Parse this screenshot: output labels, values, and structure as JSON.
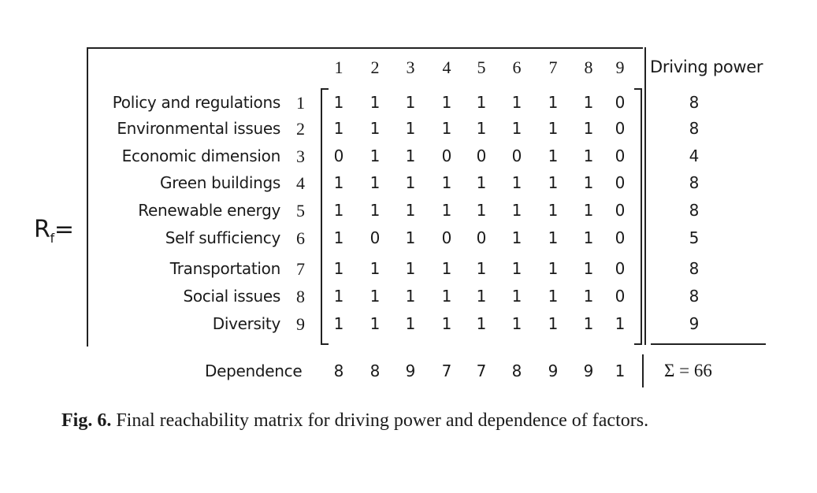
{
  "matrix_symbol": "R",
  "matrix_subscript": "f",
  "equals": "=",
  "column_headers": [
    "1",
    "2",
    "3",
    "4",
    "5",
    "6",
    "7",
    "8",
    "9"
  ],
  "driving_power_header": "Driving power",
  "rows": [
    {
      "label": "Policy and regulations",
      "index": "1",
      "values": [
        1,
        1,
        1,
        1,
        1,
        1,
        1,
        1,
        0
      ],
      "driving_power": "8"
    },
    {
      "label": "Environmental issues",
      "index": "2",
      "values": [
        1,
        1,
        1,
        1,
        1,
        1,
        1,
        1,
        0
      ],
      "driving_power": "8"
    },
    {
      "label": "Economic dimension",
      "index": "3",
      "values": [
        0,
        1,
        1,
        0,
        0,
        0,
        1,
        1,
        0
      ],
      "driving_power": "4"
    },
    {
      "label": "Green buildings",
      "index": "4",
      "values": [
        1,
        1,
        1,
        1,
        1,
        1,
        1,
        1,
        0
      ],
      "driving_power": "8"
    },
    {
      "label": "Renewable energy",
      "index": "5",
      "values": [
        1,
        1,
        1,
        1,
        1,
        1,
        1,
        1,
        0
      ],
      "driving_power": "8"
    },
    {
      "label": "Self sufficiency",
      "index": "6",
      "values": [
        1,
        0,
        1,
        0,
        0,
        1,
        1,
        1,
        0
      ],
      "driving_power": "5"
    },
    {
      "label": "Transportation",
      "index": "7",
      "values": [
        1,
        1,
        1,
        1,
        1,
        1,
        1,
        1,
        0
      ],
      "driving_power": "8"
    },
    {
      "label": "Social issues",
      "index": "8",
      "values": [
        1,
        1,
        1,
        1,
        1,
        1,
        1,
        1,
        0
      ],
      "driving_power": "8"
    },
    {
      "label": "Diversity",
      "index": "9",
      "values": [
        1,
        1,
        1,
        1,
        1,
        1,
        1,
        1,
        1
      ],
      "driving_power": "9"
    }
  ],
  "dependence_label": "Dependence",
  "dependence": [
    "8",
    "8",
    "9",
    "7",
    "7",
    "8",
    "9",
    "9",
    "1"
  ],
  "sum_label": "Σ = 66",
  "caption": {
    "number": "Fig. 6.",
    "text": " Final reachability matrix for driving power and dependence of factors."
  }
}
